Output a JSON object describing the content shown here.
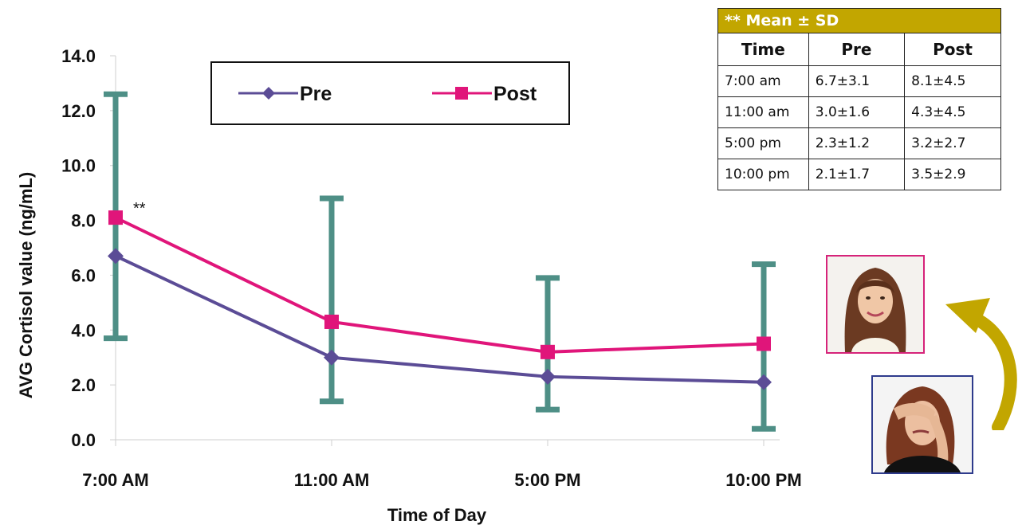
{
  "chart_data": {
    "type": "line",
    "title": "",
    "xlabel": "Time of Day",
    "ylabel": "AVG Cortisol value (ng/mL)",
    "categories": [
      "7:00 AM",
      "11:00 AM",
      "5:00 PM",
      "10:00 PM"
    ],
    "yticks": [
      "0.0",
      "2.0",
      "4.0",
      "6.0",
      "8.0",
      "10.0",
      "12.0",
      "14.0"
    ],
    "ylim": [
      0,
      14
    ],
    "grid": false,
    "legend_placement": "top-center",
    "series": [
      {
        "name": "Pre",
        "values": [
          6.7,
          3.0,
          2.3,
          2.1
        ],
        "color": "#5b4c96",
        "marker": "diamond"
      },
      {
        "name": "Post",
        "values": [
          8.1,
          4.3,
          3.2,
          3.5
        ],
        "color": "#e0157a",
        "marker": "square"
      }
    ],
    "error_bars": {
      "color": "#4e8f86",
      "ranges": [
        [
          3.7,
          12.6
        ],
        [
          1.4,
          8.8
        ],
        [
          1.1,
          5.9
        ],
        [
          0.4,
          6.4
        ]
      ]
    },
    "annotation": {
      "text": "**",
      "category": "7:00 AM"
    }
  },
  "stats_table": {
    "header": "** Mean ± SD",
    "columns": [
      "Time",
      "Pre",
      "Post"
    ],
    "rows": [
      [
        "7:00 am",
        "6.7±3.1",
        "8.1±4.5"
      ],
      [
        "11:00 am",
        "3.0±1.6",
        "4.3±4.5"
      ],
      [
        "5:00 pm",
        "2.3±1.2",
        "3.2±2.7"
      ],
      [
        "10:00 pm",
        "2.1±1.7",
        "3.5±2.9"
      ]
    ]
  },
  "photos": {
    "after_frame_color": "#d6237a",
    "before_frame_color": "#2e3b8c",
    "arrow_color": "#c2a600",
    "after_icon": "smiling-woman-photo",
    "before_icon": "stressed-woman-photo"
  }
}
